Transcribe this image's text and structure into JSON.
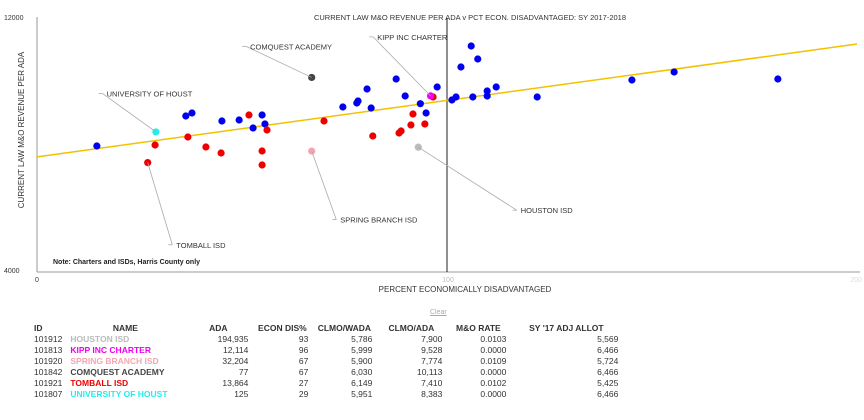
{
  "chart_data": {
    "type": "scatter",
    "title": "CURRENT LAW M&O REVENUE PER ADA v PCT ECON. DISADVANTAGED: SY 2017-2018",
    "xlabel": "PERCENT ECONOMICALLY DISADVANTAGED",
    "ylabel": "CURRENT LAW M&O REVENUE PER ADA",
    "xlim": [
      0,
      200
    ],
    "ylim": [
      4000,
      12000
    ],
    "x_ticks": [
      "0",
      "100",
      "200"
    ],
    "y_ticks": [
      "4000",
      "12000"
    ],
    "reference_line_x": 100,
    "note": "Note: Charters and ISDs, Harris County only",
    "trendline": {
      "color": "#f2c200",
      "x": [
        0,
        200
      ],
      "y": [
        7590,
        11175
      ]
    },
    "series": [
      {
        "name": "Charters",
        "color": "#0000ee",
        "points": [
          [
            14.6,
            7937
          ],
          [
            36.3,
            8889
          ],
          [
            37.8,
            8984
          ],
          [
            45.1,
            8730
          ],
          [
            49.3,
            8762
          ],
          [
            52.7,
            8508
          ],
          [
            54.9,
            8921
          ],
          [
            55.6,
            8635
          ],
          [
            74.6,
            9175
          ],
          [
            78.0,
            9302
          ],
          [
            78.3,
            9365
          ],
          [
            80.5,
            9746
          ],
          [
            81.5,
            9143
          ],
          [
            87.6,
            10063
          ],
          [
            89.8,
            9524
          ],
          [
            94.9,
            8984
          ],
          [
            93.5,
            9280
          ],
          [
            97.6,
            9810
          ],
          [
            101.2,
            9397
          ],
          [
            102.2,
            9492
          ],
          [
            103.4,
            10444
          ],
          [
            105.9,
            11111
          ],
          [
            106.3,
            9492
          ],
          [
            107.5,
            10698
          ],
          [
            109.8,
            9524
          ],
          [
            109.8,
            9683
          ],
          [
            112.0,
            9810
          ],
          [
            122.0,
            9492
          ],
          [
            145.1,
            10032
          ],
          [
            155.4,
            10286
          ],
          [
            180.7,
            10063
          ]
        ]
      },
      {
        "name": "ISDs",
        "color": "#ee0000",
        "points": [
          [
            28.8,
            7968
          ],
          [
            36.8,
            8222
          ],
          [
            41.2,
            7905
          ],
          [
            44.9,
            7714
          ],
          [
            51.7,
            8921
          ],
          [
            54.9,
            7778
          ],
          [
            54.9,
            7333
          ],
          [
            56.1,
            8444
          ],
          [
            70.0,
            8730
          ],
          [
            81.9,
            8254
          ],
          [
            88.3,
            8349
          ],
          [
            88.8,
            8413
          ],
          [
            91.2,
            8603
          ],
          [
            91.7,
            8952
          ],
          [
            94.6,
            8635
          ],
          [
            96.6,
            9492
          ]
        ]
      }
    ],
    "highlighted": [
      {
        "label": "HOUSTON ISD",
        "x": 93,
        "y": 7900,
        "color": "#bbbbbb",
        "label_x": 117,
        "label_y": 5900
      },
      {
        "label": "KIPP INC CHARTER",
        "x": 96,
        "y": 9528,
        "color": "#ee00ee",
        "label_x": 82,
        "label_y": 11400
      },
      {
        "label": "SPRING BRANCH ISD",
        "x": 67,
        "y": 7774,
        "color": "#f4a6b0",
        "label_x": 73,
        "label_y": 5600
      },
      {
        "label": "COMQUEST ACADEMY",
        "x": 67,
        "y": 10113,
        "color": "#444444",
        "label_x": 51,
        "label_y": 11100
      },
      {
        "label": "TOMBALL ISD",
        "x": 27,
        "y": 7410,
        "color": "#ee0000",
        "label_x": 33,
        "label_y": 4800
      },
      {
        "label": "UNIVERSITY OF HOUST",
        "x": 29,
        "y": 8383,
        "color": "#22eeee",
        "label_x": 16,
        "label_y": 9600
      }
    ]
  },
  "clear_label": "Clear",
  "table": {
    "headers": [
      "ID",
      "NAME",
      "ADA",
      "ECON DIS%",
      "CLMO/WADA",
      "CLMO/ADA",
      "M&O RATE",
      "SY '17 ADJ ALLOT"
    ],
    "rows": [
      {
        "id": "101912",
        "name": "HOUSTON ISD",
        "color": "#bbbbbb",
        "ada": "194,935",
        "econ": "93",
        "wada": "5,786",
        "ada_rev": "7,900",
        "rate": "0.0103",
        "allot": "5,569"
      },
      {
        "id": "101813",
        "name": "KIPP INC CHARTER",
        "color": "#ee00ee",
        "ada": "12,114",
        "econ": "96",
        "wada": "5,999",
        "ada_rev": "9,528",
        "rate": "0.0000",
        "allot": "6,466"
      },
      {
        "id": "101920",
        "name": "SPRING BRANCH ISD",
        "color": "#f4a6b0",
        "ada": "32,204",
        "econ": "67",
        "wada": "5,900",
        "ada_rev": "7,774",
        "rate": "0.0109",
        "allot": "5,724"
      },
      {
        "id": "101842",
        "name": "COMQUEST ACADEMY",
        "color": "#444444",
        "ada": "77",
        "econ": "67",
        "wada": "6,030",
        "ada_rev": "10,113",
        "rate": "0.0000",
        "allot": "6,466"
      },
      {
        "id": "101921",
        "name": "TOMBALL ISD",
        "color": "#ee0000",
        "ada": "13,864",
        "econ": "27",
        "wada": "6,149",
        "ada_rev": "7,410",
        "rate": "0.0102",
        "allot": "5,425"
      },
      {
        "id": "101807",
        "name": "UNIVERSITY OF HOUST",
        "color": "#22eeee",
        "ada": "125",
        "econ": "29",
        "wada": "5,951",
        "ada_rev": "8,383",
        "rate": "0.0000",
        "allot": "6,466"
      }
    ]
  }
}
